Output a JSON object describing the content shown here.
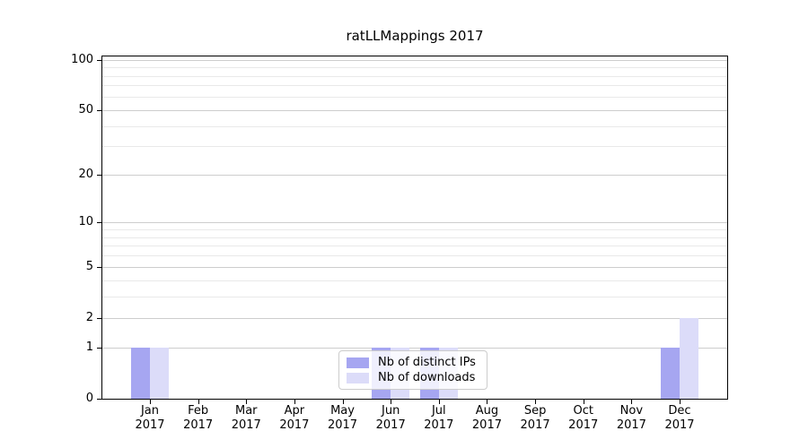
{
  "chart_data": {
    "type": "bar",
    "title": "ratLLMappings 2017",
    "months": [
      "Jan",
      "Feb",
      "Mar",
      "Apr",
      "May",
      "Jun",
      "Jul",
      "Aug",
      "Sep",
      "Oct",
      "Nov",
      "Dec"
    ],
    "year": "2017",
    "series": [
      {
        "name": "Nb of distinct IPs",
        "color": "#a6a6f1",
        "values": [
          1,
          0,
          0,
          0,
          0,
          1,
          1,
          0,
          0,
          0,
          0,
          1
        ]
      },
      {
        "name": "Nb of downloads",
        "color": "#dcdcf9",
        "values": [
          1,
          0,
          0,
          0,
          0,
          1,
          1,
          0,
          0,
          0,
          0,
          2
        ]
      }
    ],
    "yticks": [
      0,
      1,
      2,
      5,
      10,
      20,
      50,
      100
    ],
    "minor_gridlines": [
      3,
      4,
      6,
      7,
      8,
      9,
      30,
      40,
      60,
      70,
      80,
      90
    ],
    "scale": "log1p",
    "ylim": [
      0,
      107
    ],
    "grid": true,
    "legend_position": "lower center"
  },
  "colors": {
    "major_grid": "#cdcdcd",
    "minor_grid": "#e9e9e9",
    "axis": "#000000",
    "legend_border": "#cccccc",
    "background": "#ffffff"
  }
}
